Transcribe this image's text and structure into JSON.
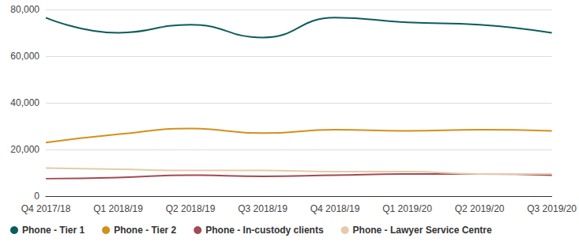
{
  "chart_data": {
    "type": "line",
    "categories": [
      "Q4 2017/18",
      "Q1 2018/19",
      "Q2 2018/19",
      "Q3 2018/19",
      "Q4 2018/19",
      "Q1 2019/20",
      "Q2 2019/20",
      "Q3 2019/20"
    ],
    "series": [
      {
        "name": "Phone - Tier 1",
        "color": "#0d5c5c",
        "values": [
          76500,
          70000,
          73500,
          68000,
          76500,
          74500,
          73500,
          70000
        ]
      },
      {
        "name": "Phone - Tier 2",
        "color": "#d4901a",
        "values": [
          23000,
          26500,
          29000,
          27000,
          28500,
          28000,
          28500,
          28000
        ]
      },
      {
        "name": "Phone - In-custody clients",
        "color": "#a34a52",
        "values": [
          7500,
          8000,
          9000,
          8500,
          9000,
          9500,
          9500,
          9000
        ]
      },
      {
        "name": "Phone - Lawyer Service Centre",
        "color": "#e6caa9",
        "values": [
          12000,
          11500,
          11000,
          11000,
          10500,
          10500,
          9500,
          9500
        ]
      }
    ],
    "ylim": [
      0,
      80000
    ],
    "yticks": [
      0,
      {
        "value": 20000,
        "label": "20,000"
      },
      {
        "value": 40000,
        "label": "40,000"
      },
      {
        "value": 60000,
        "label": "60,000"
      },
      {
        "value": 80000,
        "label": "80,000"
      }
    ],
    "grid": true,
    "legend": "bottom-left"
  }
}
